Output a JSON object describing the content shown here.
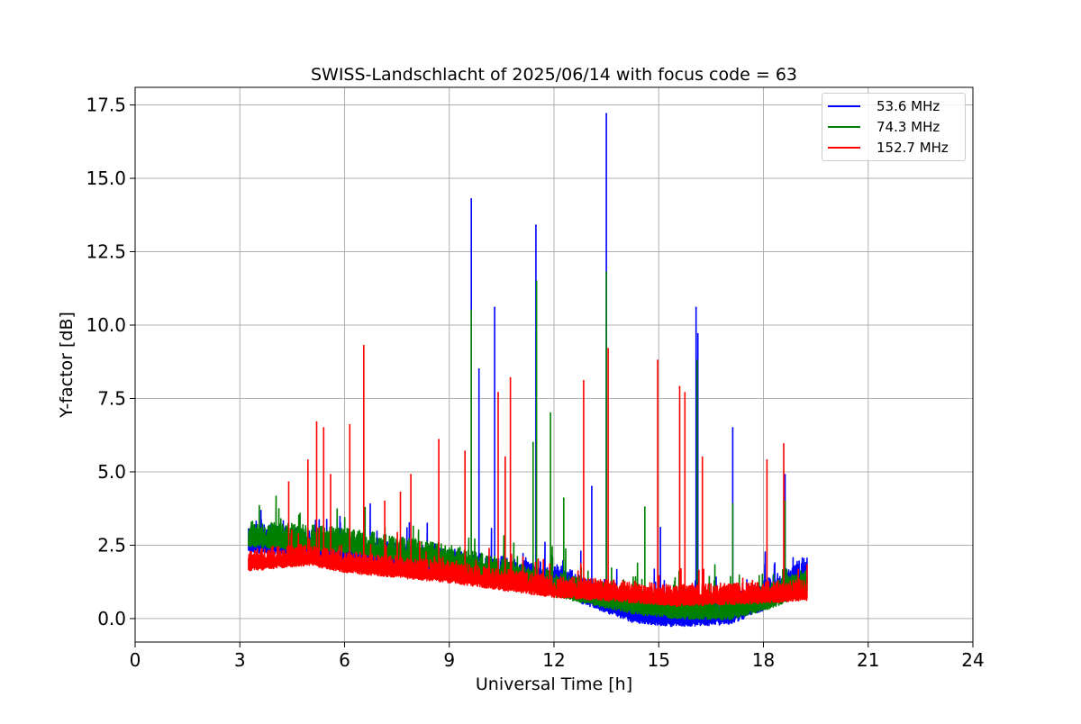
{
  "chart_data": {
    "type": "line",
    "title": "SWISS-Landschlacht of 2025/06/14 with focus code = 63",
    "xlabel": "Universal Time [h]",
    "ylabel": "Y-factor [dB]",
    "xlim": [
      0,
      24
    ],
    "ylim": [
      -0.8,
      18.1
    ],
    "x_ticks": [
      0,
      3,
      6,
      9,
      12,
      15,
      18,
      21,
      24
    ],
    "x_tick_labels": [
      "0",
      "3",
      "6",
      "9",
      "12",
      "15",
      "18",
      "21",
      "24"
    ],
    "y_ticks": [
      0.0,
      2.5,
      5.0,
      7.5,
      10.0,
      12.5,
      15.0,
      17.5
    ],
    "y_tick_labels": [
      "0.0",
      "2.5",
      "5.0",
      "7.5",
      "10.0",
      "12.5",
      "15.0",
      "17.5"
    ],
    "grid": true,
    "legend_position": "top-right",
    "time_range_hours": [
      3.25,
      19.25
    ],
    "series": [
      {
        "name": "53.6 MHz",
        "color": "#0000ff",
        "baseline": [
          [
            3.25,
            2.8
          ],
          [
            6,
            2.4
          ],
          [
            9,
            1.9
          ],
          [
            12,
            1.4
          ],
          [
            14.3,
            0.35
          ],
          [
            15.5,
            0.25
          ],
          [
            17,
            0.3
          ],
          [
            18,
            0.8
          ],
          [
            19.25,
            1.7
          ]
        ],
        "noise": 0.75,
        "peaks": [
          [
            9.63,
            14.3
          ],
          [
            9.85,
            8.5
          ],
          [
            10.3,
            10.6
          ],
          [
            11.48,
            13.4
          ],
          [
            13.5,
            17.2
          ],
          [
            13.08,
            4.5
          ],
          [
            15.05,
            3.1
          ],
          [
            16.07,
            10.6
          ],
          [
            16.12,
            9.7
          ],
          [
            17.12,
            6.5
          ],
          [
            18.62,
            4.9
          ]
        ]
      },
      {
        "name": "74.3 MHz",
        "color": "#008000",
        "baseline": [
          [
            3.25,
            2.9
          ],
          [
            6,
            2.7
          ],
          [
            9,
            2.1
          ],
          [
            12,
            1.2
          ],
          [
            14.3,
            0.6
          ],
          [
            15.5,
            0.45
          ],
          [
            17,
            0.4
          ],
          [
            18,
            0.7
          ],
          [
            19.25,
            1.3
          ]
        ],
        "noise": 0.65,
        "peaks": [
          [
            9.63,
            10.5
          ],
          [
            11.5,
            11.5
          ],
          [
            13.5,
            11.8
          ],
          [
            11.9,
            7.0
          ],
          [
            11.4,
            6.0
          ],
          [
            12.28,
            4.1
          ],
          [
            14.6,
            3.8
          ],
          [
            16.1,
            8.8
          ],
          [
            17.12,
            3.9
          ],
          [
            18.62,
            4.0
          ]
        ]
      },
      {
        "name": "152.7 MHz",
        "color": "#ff0000",
        "baseline": [
          [
            3.25,
            2.0
          ],
          [
            5,
            2.2
          ],
          [
            6,
            1.95
          ],
          [
            9,
            1.6
          ],
          [
            12,
            1.1
          ],
          [
            14.5,
            0.9
          ],
          [
            15.5,
            0.8
          ],
          [
            18,
            0.9
          ],
          [
            19.25,
            1.0
          ]
        ],
        "noise": 0.55,
        "peaks": [
          [
            4.4,
            4.65
          ],
          [
            4.95,
            5.4
          ],
          [
            5.2,
            6.7
          ],
          [
            5.4,
            6.5
          ],
          [
            5.6,
            4.9
          ],
          [
            6.15,
            6.6
          ],
          [
            6.55,
            9.3
          ],
          [
            7.15,
            4.0
          ],
          [
            7.6,
            4.3
          ],
          [
            7.9,
            4.9
          ],
          [
            8.7,
            6.1
          ],
          [
            9.45,
            5.7
          ],
          [
            10.4,
            7.7
          ],
          [
            10.6,
            5.5
          ],
          [
            10.75,
            8.2
          ],
          [
            12.85,
            8.1
          ],
          [
            13.55,
            9.2
          ],
          [
            14.97,
            8.8
          ],
          [
            15.6,
            7.9
          ],
          [
            15.75,
            7.7
          ],
          [
            16.25,
            5.5
          ],
          [
            18.1,
            5.4
          ],
          [
            18.58,
            5.95
          ]
        ]
      }
    ]
  }
}
